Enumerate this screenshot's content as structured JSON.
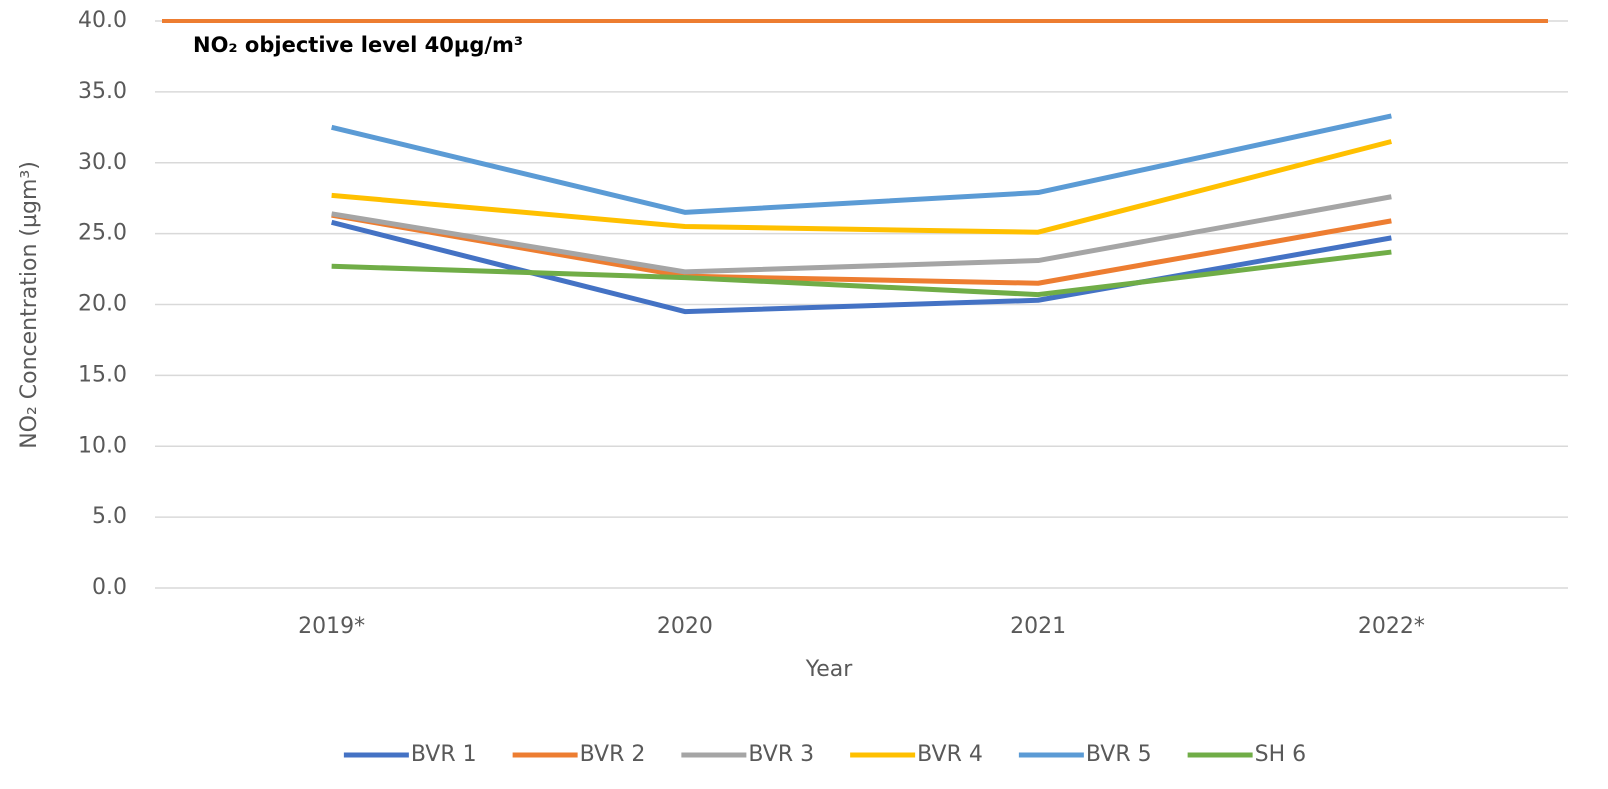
{
  "chart_data": {
    "type": "line",
    "x_label": "Year",
    "y_label": "NO₂ Concentration (µgm³)",
    "categories": [
      "2019*",
      "2020",
      "2021",
      "2022*"
    ],
    "series": [
      {
        "name": "BVR 1",
        "color": "#4472c4",
        "values": [
          25.8,
          19.5,
          20.3,
          24.7
        ]
      },
      {
        "name": "BVR 2",
        "color": "#ed7d31",
        "values": [
          26.3,
          22.0,
          21.5,
          25.9
        ]
      },
      {
        "name": "BVR 3",
        "color": "#a5a5a5",
        "values": [
          26.4,
          22.3,
          23.1,
          27.6
        ]
      },
      {
        "name": "BVR 4",
        "color": "#ffc000",
        "values": [
          27.7,
          25.5,
          25.1,
          31.5
        ]
      },
      {
        "name": "BVR 5",
        "color": "#5b9bd5",
        "values": [
          32.5,
          26.5,
          27.9,
          33.3
        ]
      },
      {
        "name": "SH 6",
        "color": "#70ad47",
        "values": [
          22.7,
          21.9,
          20.7,
          23.7
        ]
      }
    ],
    "reference_line": {
      "value": 40,
      "color": "#ed7d31",
      "label": "NO₂ objective level 40µg/m³"
    },
    "ylim": [
      0,
      40
    ],
    "yticks": [
      {
        "value": 0,
        "label": "0.0"
      },
      {
        "value": 5,
        "label": "5.0"
      },
      {
        "value": 10,
        "label": "10.0"
      },
      {
        "value": 15,
        "label": "15.0"
      },
      {
        "value": 20,
        "label": "20.0"
      },
      {
        "value": 25,
        "label": "25.0"
      },
      {
        "value": 30,
        "label": "30.0"
      },
      {
        "value": 35,
        "label": "35.0"
      },
      {
        "value": 40,
        "label": "40.0"
      }
    ],
    "grid": true,
    "legend": "bottom"
  }
}
